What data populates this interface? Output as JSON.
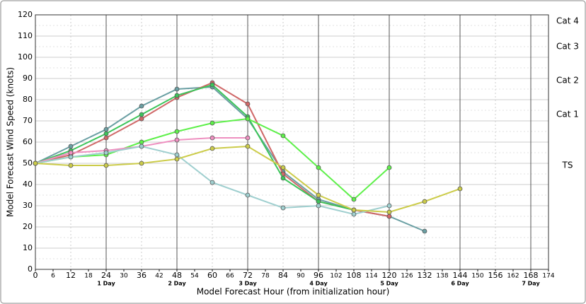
{
  "chart_data": {
    "type": "line",
    "xlabel": "Model Forecast Hour (from initialization hour)",
    "ylabel": "Model Forecast Wind Speed (knots)",
    "x": [
      0,
      12,
      24,
      36,
      48,
      60,
      72,
      84,
      96,
      108,
      120,
      132,
      144
    ],
    "series": [
      {
        "color": "#6a9fa3",
        "values": [
          50,
          58,
          66,
          77,
          85,
          86,
          71,
          46,
          33,
          28,
          25,
          18,
          null
        ]
      },
      {
        "color": "#d06868",
        "values": [
          50,
          54,
          62,
          71,
          81,
          88,
          78,
          45,
          32,
          28,
          25,
          null,
          null
        ]
      },
      {
        "color": "#3cc45a",
        "values": [
          50,
          56,
          64,
          73,
          82,
          87,
          72,
          43,
          32,
          28,
          null,
          null,
          null
        ]
      },
      {
        "color": "#5ef04a",
        "values": [
          50,
          53,
          54,
          60,
          65,
          69,
          71,
          63,
          48,
          33,
          48,
          null,
          null
        ]
      },
      {
        "color": "#ee90c0",
        "values": [
          50,
          55,
          56,
          58,
          61,
          62,
          62,
          null,
          null,
          null,
          null,
          null,
          null
        ]
      },
      {
        "color": "#9fcfcf",
        "values": [
          50,
          53,
          55,
          58,
          54,
          41,
          35,
          29,
          30,
          26,
          30,
          null,
          null
        ]
      },
      {
        "color": "#cccc4a",
        "values": [
          50,
          49,
          49,
          50,
          52,
          57,
          58,
          48,
          35,
          28,
          27,
          32,
          38
        ]
      }
    ],
    "xlim": [
      0,
      174
    ],
    "xticks": [
      0,
      6,
      12,
      18,
      24,
      30,
      36,
      42,
      48,
      54,
      60,
      66,
      72,
      78,
      84,
      90,
      96,
      102,
      108,
      114,
      120,
      126,
      132,
      138,
      144,
      150,
      156,
      162,
      168,
      174
    ],
    "day_ticks": [
      {
        "value": 24,
        "label": "1 Day"
      },
      {
        "value": 48,
        "label": "2 Day"
      },
      {
        "value": 72,
        "label": "3 Day"
      },
      {
        "value": 96,
        "label": "4 Day"
      },
      {
        "value": 120,
        "label": "5 Day"
      },
      {
        "value": 144,
        "label": "6 Day"
      },
      {
        "value": 168,
        "label": "7 Day"
      }
    ],
    "ylim": [
      0,
      120
    ],
    "yticks": [
      0,
      10,
      20,
      30,
      40,
      50,
      60,
      70,
      80,
      90,
      100,
      110,
      120
    ],
    "intensity_labels": [
      {
        "value": 49,
        "label": "TS"
      },
      {
        "value": 73,
        "label": "Cat 1"
      },
      {
        "value": 89,
        "label": "Cat 2"
      },
      {
        "value": 105,
        "label": "Cat 3"
      },
      {
        "value": 117,
        "label": "Cat 4"
      }
    ],
    "grid": true
  }
}
